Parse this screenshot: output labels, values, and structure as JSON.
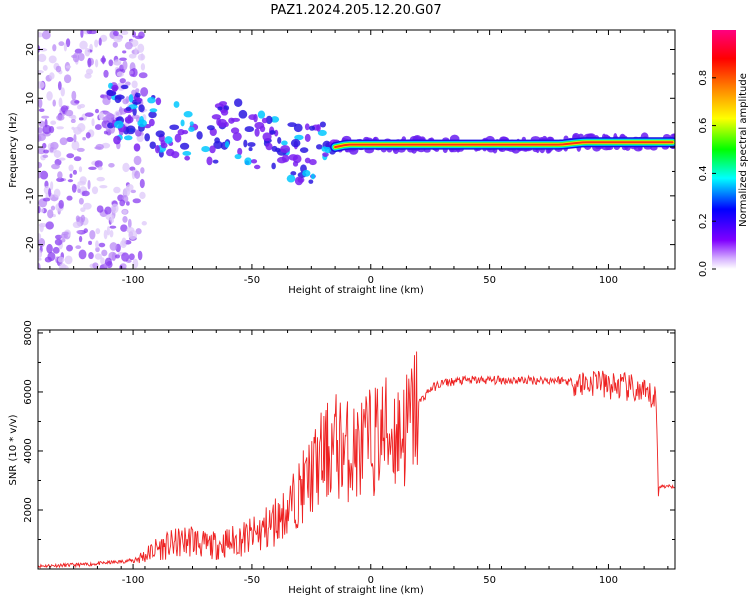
{
  "figure": {
    "title": "PAZ1.2024.205.12.20.G07"
  },
  "chart_data": [
    {
      "type": "heatmap",
      "title": "",
      "xlabel": "Height of straight line (km)",
      "ylabel": "Frequency (Hz)",
      "xlim": [
        -140,
        128
      ],
      "ylim": [
        -25,
        24
      ],
      "xticks": [
        -100,
        -50,
        0,
        50,
        100
      ],
      "xtick_labels": [
        "-100",
        "-50",
        "0",
        "50",
        "100"
      ],
      "yticks": [
        -20,
        -10,
        0,
        10,
        20
      ],
      "ytick_labels": [
        "-20",
        "-10",
        "0",
        "10",
        "20"
      ],
      "ridge": {
        "x": [
          -110,
          -100,
          -90,
          -80,
          -70,
          -60,
          -50,
          -40,
          -30,
          -20,
          -15,
          -10,
          0,
          20,
          50,
          80,
          90,
          100,
          110,
          120,
          128
        ],
        "frequency": [
          7,
          6,
          4,
          3,
          1,
          4,
          2,
          0,
          -2,
          -1,
          0,
          0.5,
          0.5,
          0.5,
          0.5,
          0.5,
          1,
          1,
          1,
          1,
          1
        ]
      },
      "colorbar": {
        "label": "Normalized spectral amplitude",
        "range": [
          0,
          1
        ],
        "ticks": [
          0.0,
          0.2,
          0.4,
          0.6,
          0.8
        ],
        "tick_labels": [
          "0.0",
          "0.2",
          "0.4",
          "0.6",
          "0.8"
        ],
        "colors": [
          "#ffffff",
          "#c080ff",
          "#8000ff",
          "#0000ff",
          "#00ffff",
          "#00ff00",
          "#ffff00",
          "#ff8000",
          "#ff0000",
          "#ff0080"
        ]
      }
    },
    {
      "type": "line",
      "title": "",
      "xlabel": "Height of straight line (km)",
      "ylabel": "SNR (10 * v/v)",
      "xlim": [
        -140,
        128
      ],
      "ylim": [
        0,
        8100
      ],
      "xticks": [
        -100,
        -50,
        0,
        50,
        100
      ],
      "xtick_labels": [
        "-100",
        "-50",
        "0",
        "50",
        "100"
      ],
      "yticks": [
        2000,
        4000,
        6000,
        8000
      ],
      "ytick_labels": [
        "2000",
        "4000",
        "6000",
        "8000"
      ],
      "line_color": "#ee2222",
      "series": [
        {
          "x": [
            -140,
            -120,
            -105,
            -100,
            -95,
            -90,
            -85,
            -80,
            -75,
            -70,
            -65,
            -60,
            -55,
            -50,
            -45,
            -40,
            -35,
            -30,
            -25,
            -20,
            -15,
            -10,
            -5,
            0,
            5,
            10,
            15,
            20,
            25,
            30,
            40,
            50,
            60,
            70,
            80,
            88,
            93,
            96,
            98,
            100,
            105,
            110,
            115,
            119,
            120,
            121,
            128
          ],
          "values": [
            100,
            150,
            250,
            300,
            450,
            700,
            800,
            900,
            1000,
            800,
            800,
            900,
            1000,
            1100,
            1300,
            1600,
            2000,
            2600,
            3200,
            3800,
            4200,
            4000,
            4000,
            4300,
            4600,
            4600,
            4700,
            5600,
            6100,
            6300,
            6400,
            6400,
            6400,
            6400,
            6400,
            6300,
            6300,
            6500,
            6200,
            6200,
            6200,
            6100,
            5900,
            5800,
            5800,
            2800,
            2800
          ]
        }
      ]
    }
  ]
}
